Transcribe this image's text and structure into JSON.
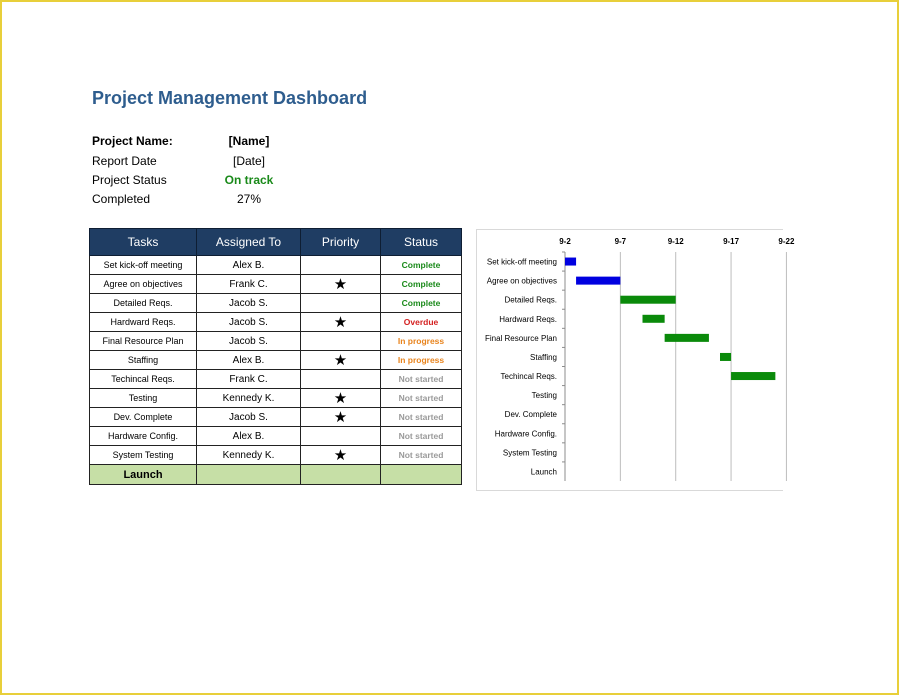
{
  "title": "Project Management Dashboard",
  "info": [
    {
      "label": "Project Name:",
      "value": "[Name]",
      "label_bold": true,
      "value_style": "bold"
    },
    {
      "label": "Report Date",
      "value": "[Date]",
      "label_bold": false,
      "value_style": "normal"
    },
    {
      "label": "Project Status",
      "value": "On track",
      "label_bold": false,
      "value_style": "green"
    },
    {
      "label": "Completed",
      "value": "27%",
      "label_bold": false,
      "value_style": "normal"
    }
  ],
  "table": {
    "headers": [
      "Tasks",
      "Assigned To",
      "Priority",
      "Status"
    ],
    "priority_symbol": "★",
    "rows": [
      {
        "task": "Set kick-off meeting",
        "assigned": "Alex B.",
        "priority": false,
        "status": "Complete"
      },
      {
        "task": "Agree on objectives",
        "assigned": "Frank C.",
        "priority": true,
        "status": "Complete"
      },
      {
        "task": "Detailed Reqs.",
        "assigned": "Jacob S.",
        "priority": false,
        "status": "Complete"
      },
      {
        "task": "Hardward Reqs.",
        "assigned": "Jacob S.",
        "priority": true,
        "status": "Overdue"
      },
      {
        "task": "Final Resource Plan",
        "assigned": "Jacob S.",
        "priority": false,
        "status": "In progress"
      },
      {
        "task": "Staffing",
        "assigned": "Alex B.",
        "priority": true,
        "status": "In progress"
      },
      {
        "task": "Techincal Reqs.",
        "assigned": "Frank C.",
        "priority": false,
        "status": "Not started"
      },
      {
        "task": "Testing",
        "assigned": "Kennedy K.",
        "priority": true,
        "status": "Not started"
      },
      {
        "task": "Dev. Complete",
        "assigned": "Jacob S.",
        "priority": true,
        "status": "Not started"
      },
      {
        "task": "Hardware Config.",
        "assigned": "Alex B.",
        "priority": false,
        "status": "Not started"
      },
      {
        "task": "System Testing",
        "assigned": "Kennedy K.",
        "priority": true,
        "status": "Not started"
      }
    ],
    "footer_task": "Launch"
  },
  "colors": {
    "header_bg": "#1f3d63",
    "complete": "#1a8a1a",
    "overdue": "#d42020",
    "in_progress": "#e8831c",
    "not_started": "#9a9a9a",
    "launch_bg": "#c6dfa6",
    "gantt_blue": "#0000e0",
    "gantt_green": "#0a8a0a"
  },
  "chart_data": {
    "type": "gantt",
    "x_ticks": [
      "9-2",
      "9-7",
      "9-12",
      "9-17",
      "9-22"
    ],
    "x_tick_values": [
      2,
      7,
      12,
      17,
      22
    ],
    "xlim": [
      2,
      21.8
    ],
    "grid": "vertical",
    "tasks": [
      {
        "name": "Set kick-off meeting",
        "start": 2.0,
        "end": 3.0,
        "color": "blue"
      },
      {
        "name": "Agree on objectives",
        "start": 3.0,
        "end": 7.0,
        "color": "blue"
      },
      {
        "name": "Detailed Reqs.",
        "start": 7.0,
        "end": 12.0,
        "color": "green"
      },
      {
        "name": "Hardward Reqs.",
        "start": 9.0,
        "end": 11.0,
        "color": "green"
      },
      {
        "name": "Final Resource Plan",
        "start": 11.0,
        "end": 15.0,
        "color": "green"
      },
      {
        "name": "Staffing",
        "start": 16.0,
        "end": 17.0,
        "color": "green"
      },
      {
        "name": "Techincal Reqs.",
        "start": 17.0,
        "end": 21.0,
        "color": "green"
      },
      {
        "name": "Testing",
        "start": null,
        "end": null,
        "color": "none"
      },
      {
        "name": "Dev. Complete",
        "start": null,
        "end": null,
        "color": "none"
      },
      {
        "name": "Hardware Config.",
        "start": null,
        "end": null,
        "color": "none"
      },
      {
        "name": "System Testing",
        "start": null,
        "end": null,
        "color": "none"
      },
      {
        "name": "Launch",
        "start": null,
        "end": null,
        "color": "none"
      }
    ]
  }
}
